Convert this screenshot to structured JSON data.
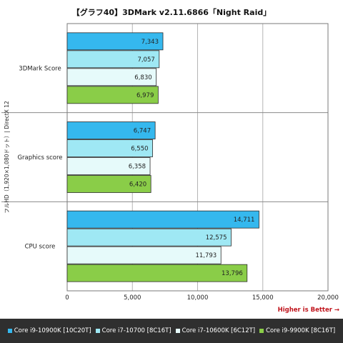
{
  "colors": {
    "series": [
      "#35b8ee",
      "#9fe8f4",
      "#e6fafa",
      "#8acd48"
    ],
    "higher_is_better": "#c0141c",
    "legend_background": "#2f2f2f"
  },
  "chart_data": {
    "type": "bar",
    "orientation": "horizontal",
    "title": "【グラフ40】3DMark v2.11.6866「Night Raid」",
    "ylabel": "フルHD（1,920×1,080ドット）| DirectX 12",
    "xlabel": "",
    "note": "Higher is Better →",
    "xlim": [
      0,
      20000
    ],
    "x_ticks": [
      0,
      5000,
      10000,
      15000,
      20000
    ],
    "x_tick_labels": [
      "0",
      "5,000",
      "10,000",
      "15,000",
      "20,000"
    ],
    "grid": "vertical",
    "legend_position": "bottom",
    "categories": [
      "3DMark Score",
      "Graphics score",
      "CPU score"
    ],
    "series": [
      {
        "name": "Core i9-10900K [10C20T]",
        "values": [
          7343,
          6747,
          14711
        ],
        "labels": [
          "7,343",
          "6,747",
          "14,711"
        ]
      },
      {
        "name": "Core i7-10700 [8C16T]",
        "values": [
          7057,
          6550,
          12575
        ],
        "labels": [
          "7,057",
          "6,550",
          "12,575"
        ]
      },
      {
        "name": "Core i7-10600K [6C12T]",
        "values": [
          6830,
          6358,
          11793
        ],
        "labels": [
          "6,830",
          "6,358",
          "11,793"
        ]
      },
      {
        "name": "Core i9-9900K [8C16T]",
        "values": [
          6979,
          6420,
          13796
        ],
        "labels": [
          "6,979",
          "6,420",
          "13,796"
        ]
      }
    ]
  }
}
